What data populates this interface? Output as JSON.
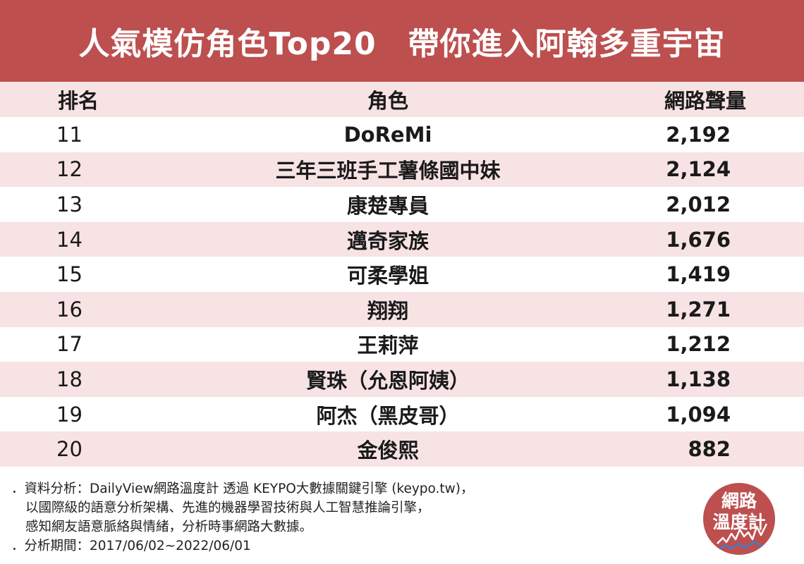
{
  "title": "人氣模仿角色Top20　帶你進入阿翰多重宇宙",
  "table": {
    "headers": {
      "rank": "排名",
      "character": "角色",
      "volume": "網路聲量"
    },
    "rows": [
      {
        "rank": "11",
        "character": "DoReMi",
        "volume": "2,192"
      },
      {
        "rank": "12",
        "character": "三年三班手工薯條國中妹",
        "volume": "2,124"
      },
      {
        "rank": "13",
        "character": "康楚專員",
        "volume": "2,012"
      },
      {
        "rank": "14",
        "character": "邁奇家族",
        "volume": "1,676"
      },
      {
        "rank": "15",
        "character": "可柔學姐",
        "volume": "1,419"
      },
      {
        "rank": "16",
        "character": "翔翔",
        "volume": "1,271"
      },
      {
        "rank": "17",
        "character": "王莉萍",
        "volume": "1,212"
      },
      {
        "rank": "18",
        "character": "賢珠（允恩阿姨）",
        "volume": "1,138"
      },
      {
        "rank": "19",
        "character": "阿杰（黑皮哥）",
        "volume": "1,094"
      },
      {
        "rank": "20",
        "character": "金俊熙",
        "volume": "882"
      }
    ]
  },
  "notes": {
    "line1": "．資料分析：DailyView網路溫度計 透過 KEYPO大數據關鍵引擎 (keypo.tw)，",
    "line2": "以國際級的語意分析架構、先進的機器學習技術與人工智慧推論引擎，",
    "line3": "感知網友語意脈絡與情緒，分析時事網路大數據。",
    "line4": "．分析期間：2017/06/02~2022/06/01"
  },
  "logo": {
    "line1": "網路",
    "line2": "溫度計",
    "icon": "thermometer-wave-logo"
  },
  "colors": {
    "brand": "#bd4f4f",
    "row_alt": "#f7e3e3"
  }
}
